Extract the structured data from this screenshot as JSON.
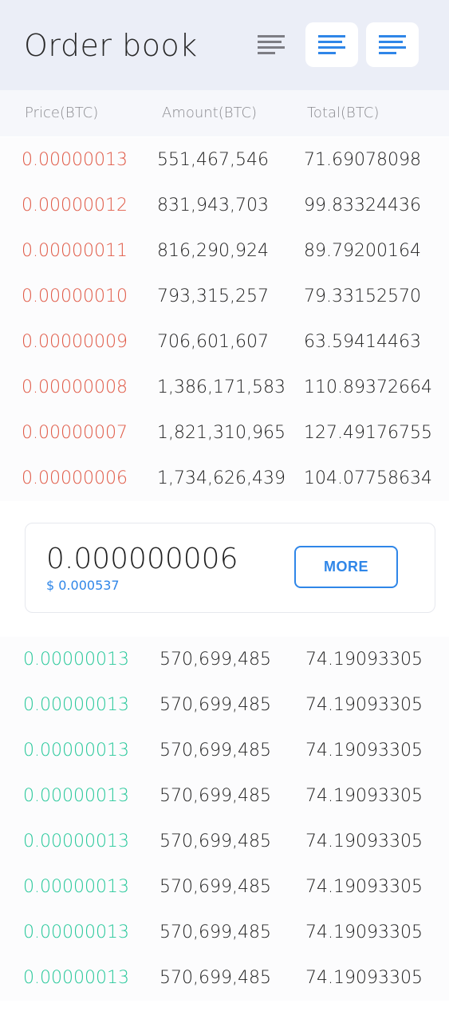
{
  "header": {
    "title": "Order book"
  },
  "columns": {
    "price": "Price(BTC)",
    "amount": "Amount(BTC)",
    "total": "Total(BTC)"
  },
  "asks": [
    {
      "price": "0.00000013",
      "amount": "551,467,546",
      "total": "71.69078098"
    },
    {
      "price": "0.00000012",
      "amount": "831,943,703",
      "total": "99.83324436"
    },
    {
      "price": "0.00000011",
      "amount": "816,290,924",
      "total": "89.79200164"
    },
    {
      "price": "0.00000010",
      "amount": "793,315,257",
      "total": "79.33152570"
    },
    {
      "price": "0.00000009",
      "amount": "706,601,607",
      "total": "63.59414463"
    },
    {
      "price": "0.00000008",
      "amount": "1,386,171,583",
      "total": "110.89372664"
    },
    {
      "price": "0.00000007",
      "amount": "1,821,310,965",
      "total": "127.49176755"
    },
    {
      "price": "0.00000006",
      "amount": "1,734,626,439",
      "total": "104.07758634"
    }
  ],
  "mid": {
    "price": "0.000000006",
    "usd": "$ 0.000537",
    "more_label": "MORE"
  },
  "bids": [
    {
      "price": "0.00000013",
      "amount": "570,699,485",
      "total": "74.19093305"
    },
    {
      "price": "0.00000013",
      "amount": "570,699,485",
      "total": "74.19093305"
    },
    {
      "price": "0.00000013",
      "amount": "570,699,485",
      "total": "74.19093305"
    },
    {
      "price": "0.00000013",
      "amount": "570,699,485",
      "total": "74.19093305"
    },
    {
      "price": "0.00000013",
      "amount": "570,699,485",
      "total": "74.19093305"
    },
    {
      "price": "0.00000013",
      "amount": "570,699,485",
      "total": "74.19093305"
    },
    {
      "price": "0.00000013",
      "amount": "570,699,485",
      "total": "74.19093305"
    },
    {
      "price": "0.00000013",
      "amount": "570,699,485",
      "total": "74.19093305"
    }
  ],
  "colors": {
    "ask": "#e05a47",
    "bid": "#27c89a",
    "accent": "#2f86e8",
    "header_bg": "#ebeef7"
  },
  "icons": {
    "view_buttons": [
      "align-left-icon",
      "align-left-icon",
      "align-left-icon"
    ]
  }
}
